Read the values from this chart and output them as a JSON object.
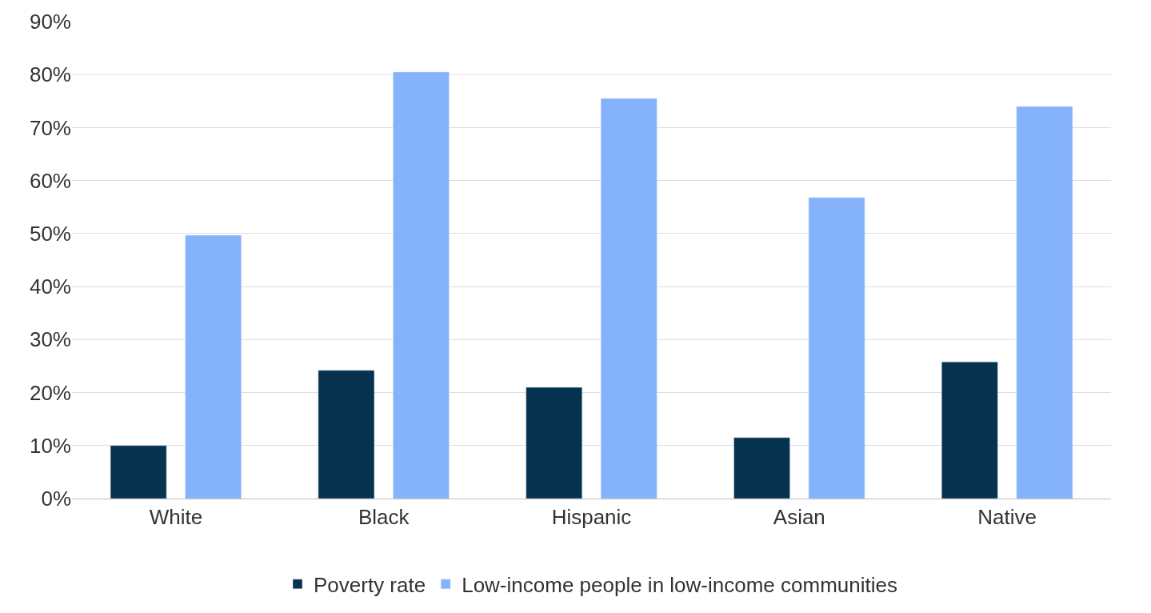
{
  "chart_data": {
    "type": "bar",
    "categories": [
      "White",
      "Black",
      "Hispanic",
      "Asian",
      "Native"
    ],
    "series": [
      {
        "name": "Poverty rate",
        "color": "#06324f",
        "values": [
          10.0,
          24.2,
          21.0,
          11.5,
          25.8
        ]
      },
      {
        "name": "Low-income people in low-income communities",
        "color": "#84b2fb",
        "values": [
          49.7,
          80.5,
          75.5,
          56.8,
          74.0
        ]
      }
    ],
    "ylim": [
      0,
      90
    ],
    "yticks": [
      {
        "value": 0,
        "label": "0%"
      },
      {
        "value": 10,
        "label": "10%"
      },
      {
        "value": 20,
        "label": "20%"
      },
      {
        "value": 30,
        "label": "30%"
      },
      {
        "value": 40,
        "label": "40%"
      },
      {
        "value": 50,
        "label": "50%"
      },
      {
        "value": 60,
        "label": "60%"
      },
      {
        "value": 70,
        "label": "70%"
      },
      {
        "value": 80,
        "label": "80%"
      },
      {
        "value": 90,
        "label": "90%"
      }
    ],
    "grid": "y",
    "legend": "bottom"
  }
}
